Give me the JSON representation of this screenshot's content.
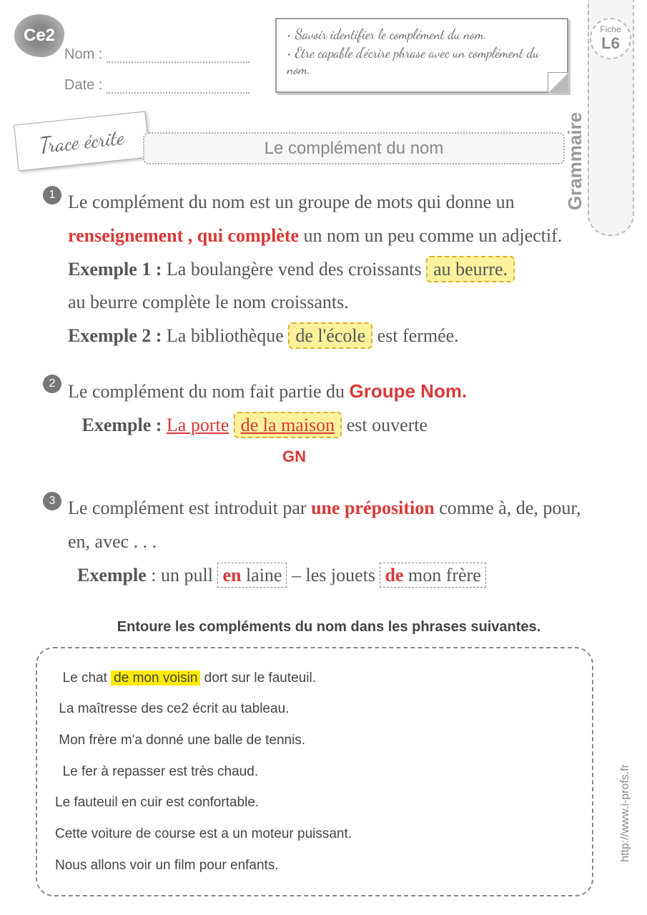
{
  "level": "Ce2",
  "nameLabel": "Nom :",
  "dateLabel": "Date :",
  "objectives": [
    "Savoir identifier le complément du nom.",
    "Etre capable d'écrire phrase avec un complément du nom."
  ],
  "fiche": {
    "small": "Fiche",
    "big": "L6"
  },
  "subject": "Grammaire",
  "traceLabel": "Trace écrite",
  "title": "Le complément du nom",
  "section1": {
    "num": "1",
    "t1": "Le complément du nom est un groupe de mots qui donne un ",
    "red1": "renseignement , qui complète",
    "t2": " un nom un peu comme un adjectif.",
    "ex1label": "Exemple 1 : ",
    "ex1text": "La boulangère vend des croissants ",
    "ex1hl": "au beurre.",
    "ex1note": "au beurre complète le nom croissants.",
    "ex2label": "Exemple 2 : ",
    "ex2text1": "La bibliothèque ",
    "ex2hl": "de l'école",
    "ex2text2": " est fermée."
  },
  "section2": {
    "num": "2",
    "t1": "Le complément du nom fait partie du  ",
    "red1": "Groupe Nom.",
    "exlabel": "Exemple : ",
    "part1": "La porte",
    "part2": "de la maison",
    "t2": " est ouverte",
    "gn": "GN"
  },
  "section3": {
    "num": "3",
    "t1": "Le complément est introduit par ",
    "red1": "une préposition",
    "t2": " comme à, de, pour, en, avec . . .",
    "exlabel": "Exemple",
    "ex1a": " : un pull ",
    "ex1b": "en",
    "ex1c": " laine",
    "sep": "    –  les jouets ",
    "ex2b": "de",
    "ex2c": " mon frère"
  },
  "exercise": {
    "title": "Entoure les compléments du nom dans les phrases suivantes.",
    "s1a": "Le chat ",
    "s1hl": "de mon voisin",
    "s1b": " dort sur le fauteuil.",
    "s2": "La maîtresse des ce2 écrit au tableau.",
    "s3": "Mon frère m'a donné une balle de tennis.",
    "s4": "Le fer à repasser est très chaud.",
    "s5": "Le fauteuil en cuir est confortable.",
    "s6": "Cette voiture de course est a un moteur puissant.",
    "s7": "Nous allons voir un film pour enfants."
  },
  "website": "http://www.i-profs.fr"
}
